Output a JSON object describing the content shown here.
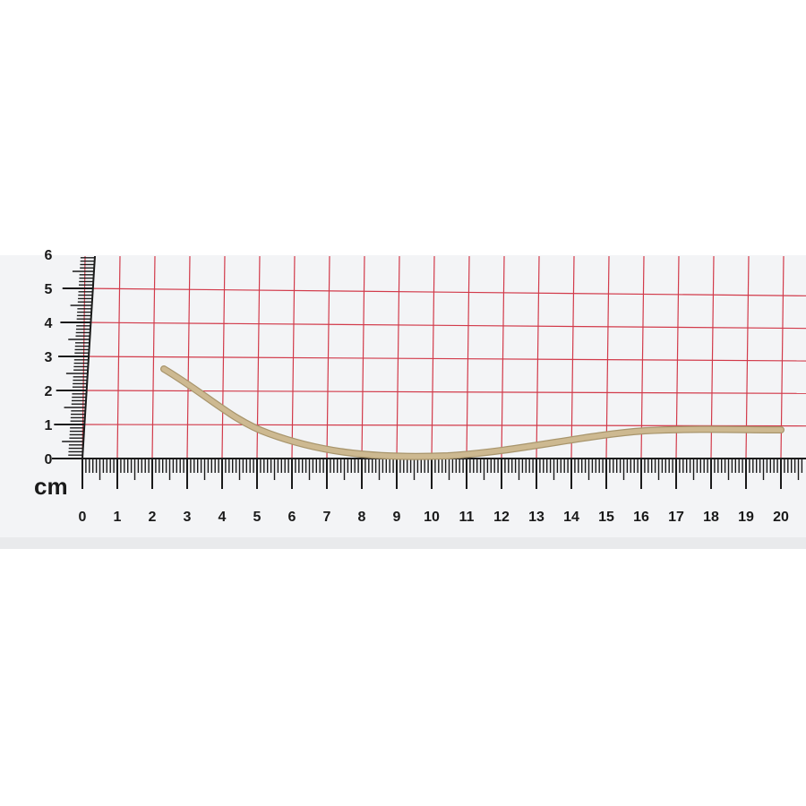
{
  "scene": {
    "subject": "bent-beige-rod-on-measuring-grid",
    "colors": {
      "background": "#ffffff",
      "paper": "#f3f4f6",
      "grid": "#d23a4a",
      "ruler_ink": "#1a1a1a",
      "rod": "#cdb991",
      "rod_edge": "#a8956c"
    }
  },
  "ruler": {
    "unit_label": "cm",
    "x_labels": [
      "0",
      "1",
      "2",
      "3",
      "4",
      "5",
      "6",
      "7",
      "8",
      "9",
      "10",
      "11",
      "12",
      "13",
      "14",
      "15",
      "16",
      "17",
      "18",
      "19",
      "20"
    ],
    "y_labels": [
      "0",
      "1",
      "2",
      "3",
      "4",
      "5",
      "6"
    ]
  }
}
